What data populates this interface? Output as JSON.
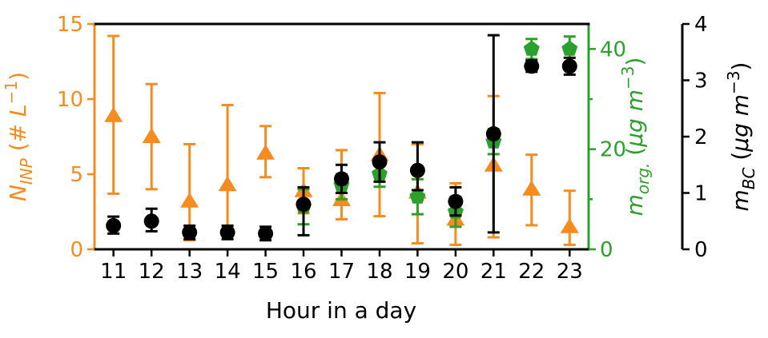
{
  "chart_data": {
    "type": "scatter",
    "x_label": "Hour in a day",
    "categories": [
      11,
      12,
      13,
      14,
      15,
      16,
      17,
      18,
      19,
      20,
      21,
      22,
      23
    ],
    "axes": {
      "x": {
        "label": "Hour in a day",
        "ticks": [
          11,
          12,
          13,
          14,
          15,
          16,
          17,
          18,
          19,
          20,
          21,
          22,
          23
        ],
        "color": "#000000"
      },
      "left": {
        "label_plain": "N_INP (# L^-1)",
        "unit": "# L^-1",
        "color": "#F68B1F",
        "range": [
          0,
          15
        ],
        "ticks": [
          0,
          5,
          10,
          15
        ],
        "label_segments": [
          {
            "t": "N",
            "style": "italic"
          },
          {
            "t": "INP",
            "style": "italic",
            "pos": "sub"
          },
          {
            "t": " (# ",
            "style": "normal"
          },
          {
            "t": "L",
            "style": "italic"
          },
          {
            "t": "−1",
            "style": "normal",
            "pos": "sup"
          },
          {
            "t": ")",
            "style": "normal"
          }
        ]
      },
      "right": {
        "label_plain": "m_org. (ug m^-3)",
        "unit": "μg m^-3",
        "color": "#2CA02C",
        "range": [
          0,
          45
        ],
        "ticks": [
          0,
          20,
          40
        ],
        "minor_ticks": [
          10,
          30
        ],
        "label_segments": [
          {
            "t": "m",
            "style": "italic"
          },
          {
            "t": "org.",
            "style": "italic",
            "pos": "sub"
          },
          {
            "t": " (",
            "style": "normal"
          },
          {
            "t": "μg",
            "style": "italic"
          },
          {
            "t": " ",
            "style": "normal"
          },
          {
            "t": "m",
            "style": "italic"
          },
          {
            "t": "−3",
            "style": "normal",
            "pos": "sup"
          },
          {
            "t": ")",
            "style": "normal"
          }
        ]
      },
      "far_right": {
        "label_plain": "m_BC (ug m^-3)",
        "unit": "μg m^-3",
        "color": "#000000",
        "range": [
          0,
          4
        ],
        "ticks": [
          0,
          1,
          2,
          3,
          4
        ],
        "label_segments": [
          {
            "t": "m",
            "style": "italic"
          },
          {
            "t": "BC",
            "style": "italic",
            "pos": "sub"
          },
          {
            "t": " (",
            "style": "normal"
          },
          {
            "t": "μg",
            "style": "italic"
          },
          {
            "t": " ",
            "style": "normal"
          },
          {
            "t": "m",
            "style": "italic"
          },
          {
            "t": "−3",
            "style": "normal",
            "pos": "sup"
          },
          {
            "t": ")",
            "style": "normal"
          }
        ]
      }
    },
    "series": [
      {
        "name": "N_INP",
        "marker": "triangle",
        "color": "#F68B1F",
        "axis": "left",
        "values": [
          8.9,
          7.5,
          3.2,
          4.3,
          6.4,
          3.9,
          3.3,
          6.3,
          3.8,
          2.0,
          5.6,
          4.0,
          1.5
        ],
        "err_low": [
          3.7,
          4.0,
          0.6,
          0.9,
          4.8,
          2.4,
          2.0,
          2.2,
          0.4,
          0.3,
          0.8,
          1.6,
          0.3
        ],
        "err_high": [
          14.2,
          11.0,
          7.0,
          9.6,
          8.2,
          5.4,
          6.6,
          10.4,
          7.0,
          4.4,
          10.2,
          6.3,
          3.9
        ]
      },
      {
        "name": "m_org",
        "marker": "pentagon",
        "color": "#2CA02C",
        "axis": "right",
        "values": [
          null,
          null,
          null,
          null,
          null,
          8.5,
          12.8,
          15.0,
          10.5,
          7.5,
          21.5,
          40.0,
          40.0
        ],
        "err_low": [
          null,
          null,
          null,
          null,
          null,
          5.0,
          10.0,
          12.5,
          7.0,
          4.5,
          19.0,
          38.0,
          37.0
        ],
        "err_high": [
          null,
          null,
          null,
          null,
          null,
          12.0,
          15.0,
          17.5,
          14.0,
          10.5,
          24.0,
          42.0,
          42.5
        ]
      },
      {
        "name": "m_BC",
        "marker": "circle",
        "color": "#000000",
        "axis": "far_right",
        "values": [
          0.42,
          0.5,
          0.3,
          0.3,
          0.28,
          0.8,
          1.25,
          1.55,
          1.4,
          0.85,
          2.05,
          3.25,
          3.25
        ],
        "err_low": [
          0.28,
          0.32,
          0.18,
          0.18,
          0.16,
          0.25,
          1.0,
          1.2,
          1.05,
          0.6,
          0.3,
          3.15,
          3.1
        ],
        "err_high": [
          0.58,
          0.72,
          0.42,
          0.42,
          0.4,
          1.1,
          1.5,
          1.9,
          1.9,
          1.1,
          3.8,
          3.35,
          3.4
        ]
      }
    ],
    "layout_hints": {
      "grid": false,
      "legend": "none",
      "xlim_categories": [
        11,
        23
      ],
      "left_ylim": [
        0,
        15
      ],
      "right_ylim": [
        0,
        45
      ],
      "far_right_ylim": [
        0,
        4
      ]
    }
  }
}
